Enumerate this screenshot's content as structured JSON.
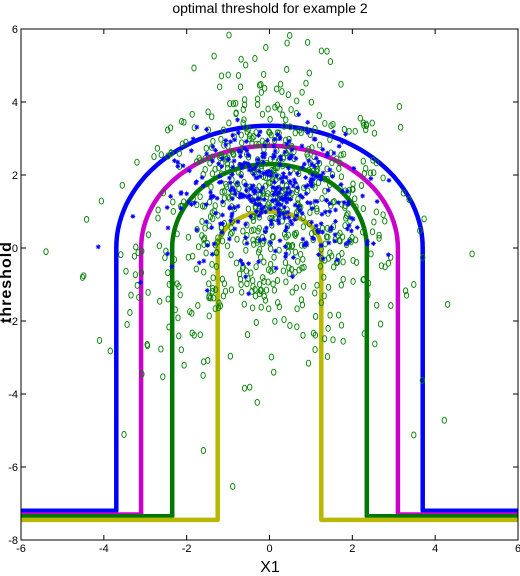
{
  "chart_data": {
    "type": "scatter",
    "title": "optimal threshold for example 2",
    "xlabel": "X1",
    "ylabel": "threshold",
    "xlim": [
      -6,
      6
    ],
    "ylim": [
      -8,
      6
    ],
    "xticks": [
      "-6",
      "-4",
      "-2",
      "0",
      "2",
      "4",
      "6"
    ],
    "yticks": [
      "-8",
      "-6",
      "-4",
      "-2",
      "0",
      "2",
      "4",
      "6"
    ],
    "grid": false,
    "series": [
      {
        "marker": "circle",
        "color": "#008000"
      },
      {
        "marker": "asterisk",
        "color": "#0000ff"
      }
    ],
    "threshold_curves": [
      {
        "color": "#0000ff",
        "baseline": -7.2,
        "edge_x": 3.7,
        "peak": 3.35
      },
      {
        "color": "#cc00cc",
        "baseline": -7.3,
        "edge_x": 3.1,
        "peak": 2.8
      },
      {
        "color": "#007700",
        "baseline": -7.35,
        "edge_x": 2.35,
        "peak": 2.3
      },
      {
        "color": "#b8b800",
        "baseline": -7.45,
        "edge_x": 1.25,
        "peak": 1.0
      }
    ]
  }
}
